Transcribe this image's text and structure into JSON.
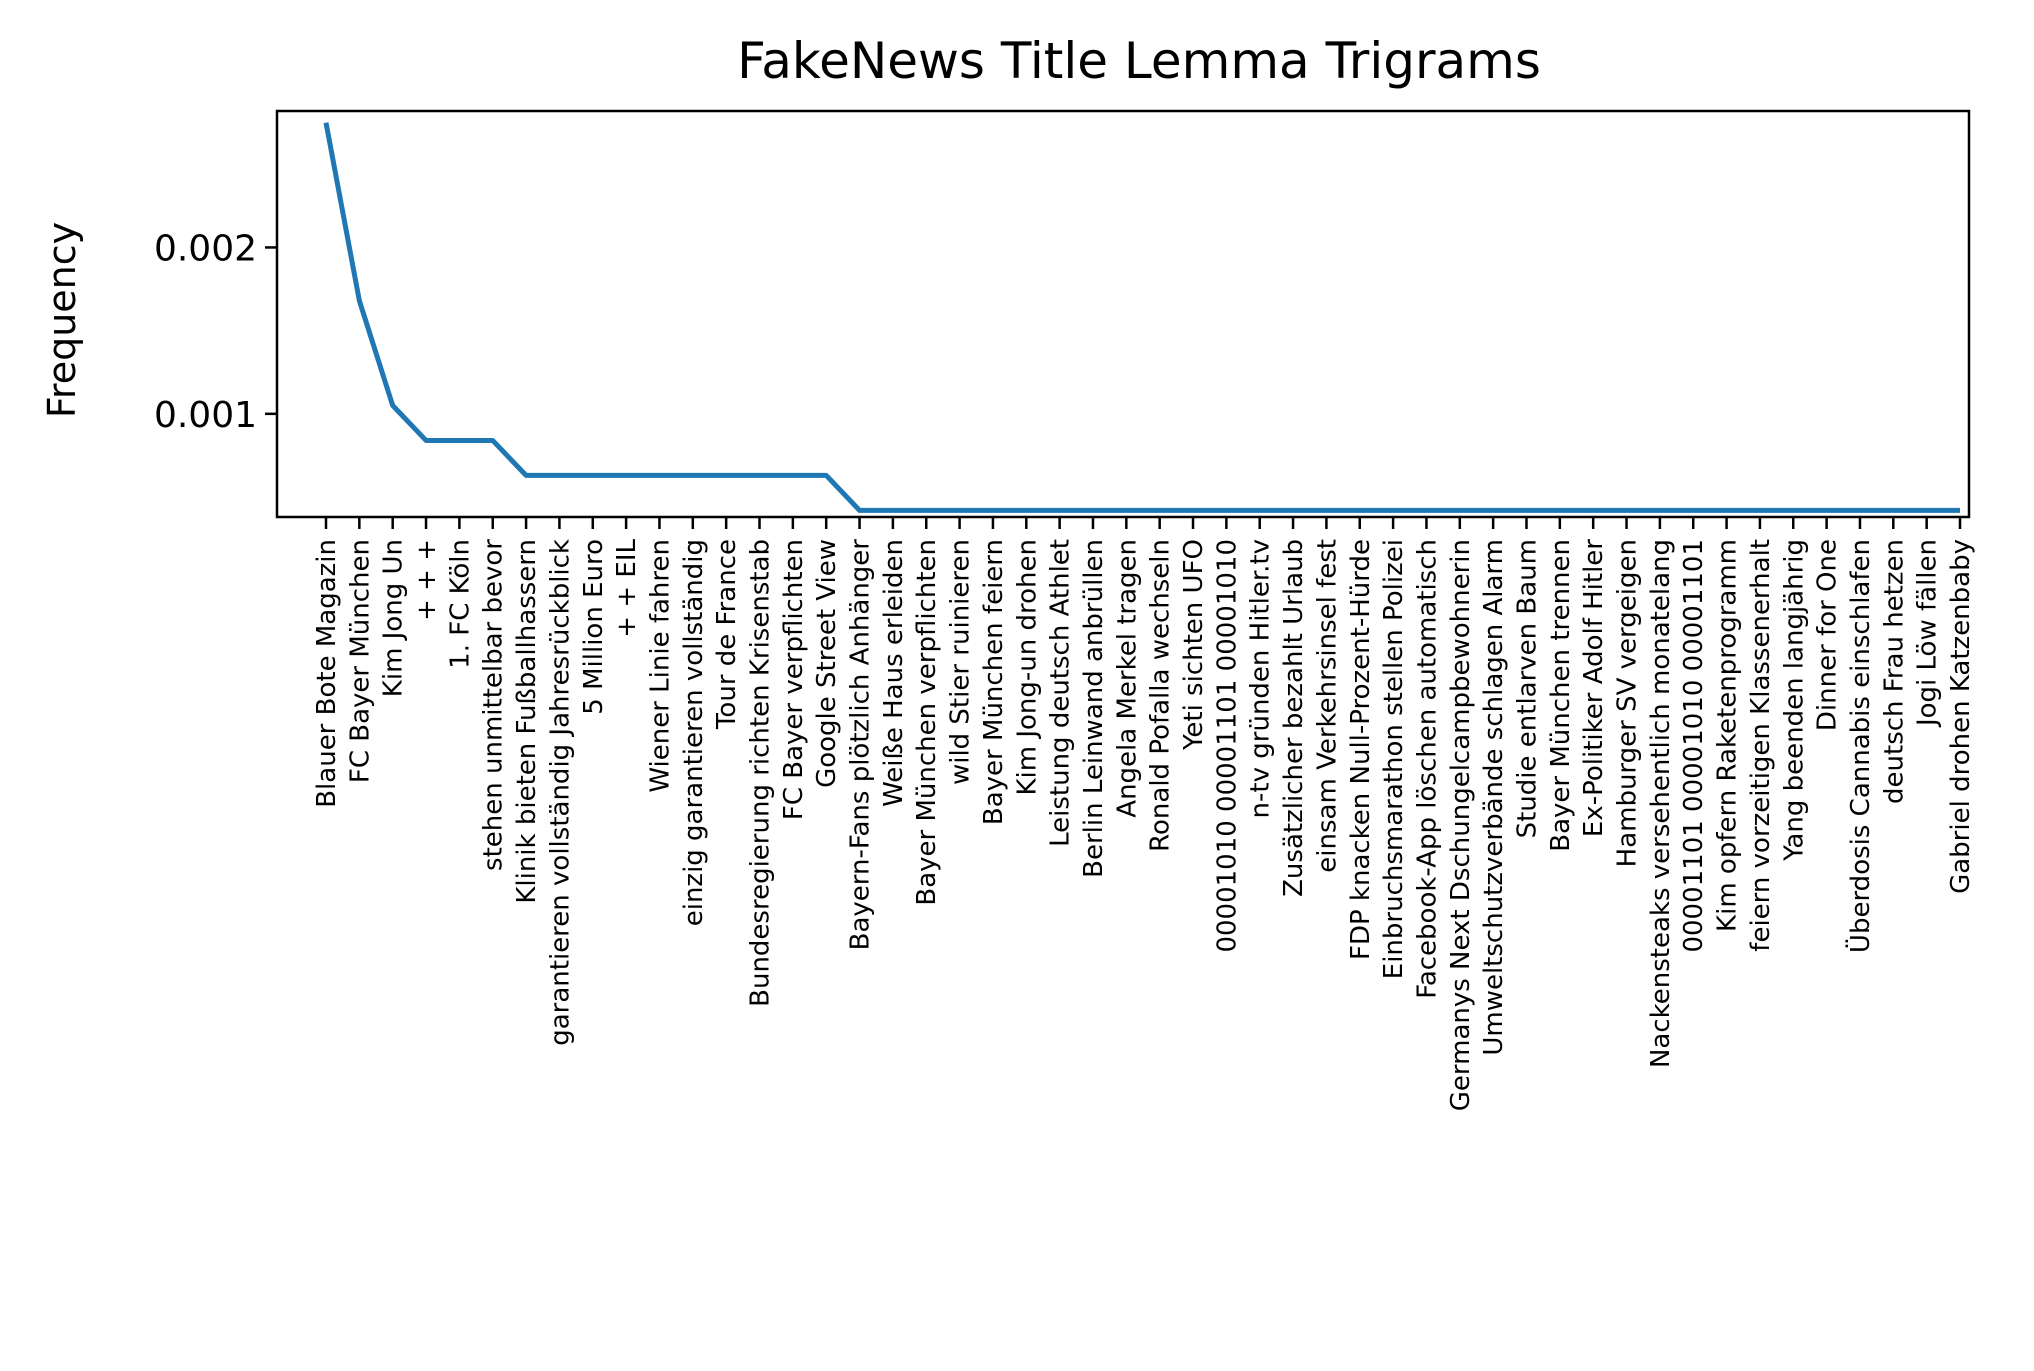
{
  "chart_data": {
    "type": "line",
    "title": "FakeNews Title Lemma Trigrams",
    "xlabel": "",
    "ylabel": "Frequency",
    "ylim": [
      0.00038,
      0.00282
    ],
    "yticks": [
      0.001,
      0.002
    ],
    "ytick_labels": [
      "0.001",
      "0.002"
    ],
    "grid": false,
    "line_color": "#1f77b4",
    "categories": [
      "Blauer Bote Magazin",
      "FC Bayer München",
      "Kim Jong Un",
      "+ + +",
      "1. FC Köln",
      "stehen unmittelbar bevor",
      "Klinik bieten Fußballhassern",
      "garantieren vollständig Jahresrückblick",
      "5 Million Euro",
      "+ + EIL",
      "Wiener Linie fahren",
      "einzig garantieren vollständig",
      "Tour de France",
      "Bundesregierung richten Krisenstab",
      "FC Bayer verpflichten",
      "Google Street View",
      "Bayern-Fans plötzlich Anhänger",
      "Weiße Haus erleiden",
      "Bayer München verpflichten",
      "wild Stier ruinieren",
      "Bayer München feiern",
      "Kim Jong-un drohen",
      "Leistung deutsch Athlet",
      "Berlin Leinwand anbrüllen",
      "Angela Merkel tragen",
      "Ronald Pofalla wechseln",
      "Yeti sichten UFO",
      "00001010 00001101 00001010",
      "n-tv gründen Hitler.tv",
      "Zusätzlicher bezahlt Urlaub",
      "einsam Verkehrsinsel fest",
      "FDP knacken Null-Prozent-Hürde",
      "Einbruchsmarathon stellen Polizei",
      "Facebook-App löschen automatisch",
      "Germanys Next Dschungelcampbewohnerin",
      "Umweltschutzverbände schlagen Alarm",
      "Studie entlarven Baum",
      "Bayer München trennen",
      "Ex-Politiker Adolf Hitler",
      "Hamburger SV vergeigen",
      "Nackensteaks versehentlich monatelang",
      "00001101 00001010 00001101",
      "Kim opfern Raketenprogramm",
      "feiern vorzeitigen Klassenerhalt",
      "Yang beenden langjährig",
      "Dinner for One",
      "Überdosis Cannabis einschlafen",
      "deutsch Frau hetzen",
      "Jogi Löw fällen",
      "Gabriel drohen Katzenbaby"
    ],
    "values": [
      0.00275,
      0.00168,
      0.00105,
      0.00084,
      0.00084,
      0.00084,
      0.00063,
      0.00063,
      0.00063,
      0.00063,
      0.00063,
      0.00063,
      0.00063,
      0.00063,
      0.00063,
      0.00063,
      0.00042,
      0.00042,
      0.00042,
      0.00042,
      0.00042,
      0.00042,
      0.00042,
      0.00042,
      0.00042,
      0.00042,
      0.00042,
      0.00042,
      0.00042,
      0.00042,
      0.00042,
      0.00042,
      0.00042,
      0.00042,
      0.00042,
      0.00042,
      0.00042,
      0.00042,
      0.00042,
      0.00042,
      0.00042,
      0.00042,
      0.00042,
      0.00042,
      0.00042,
      0.00042,
      0.00042,
      0.00042,
      0.00042,
      0.00042
    ]
  }
}
